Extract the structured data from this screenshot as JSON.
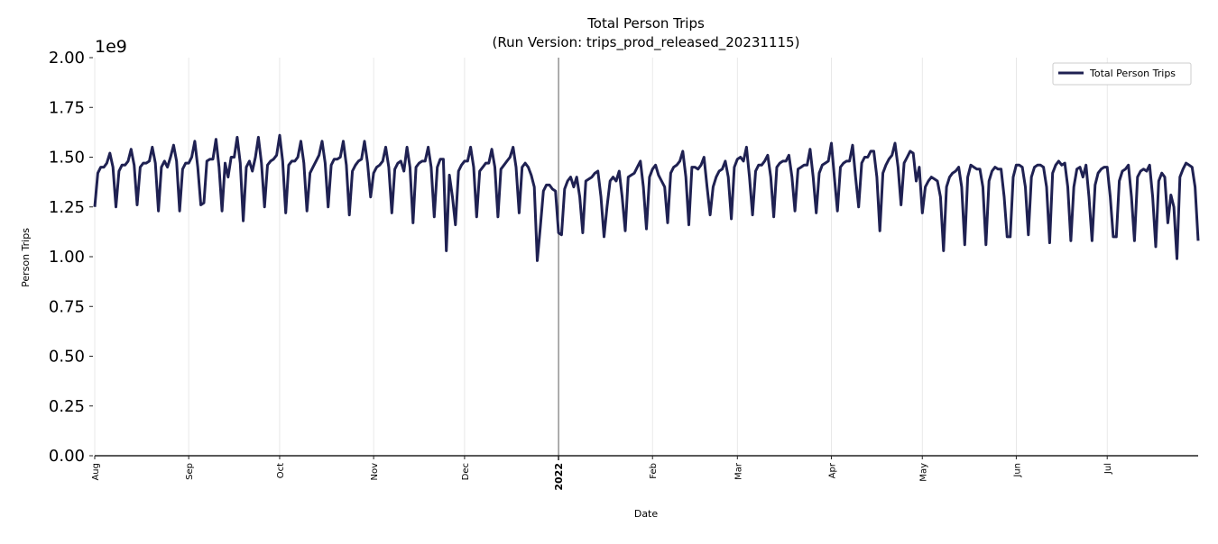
{
  "chart_data": {
    "type": "line",
    "title": "Total Person Trips",
    "subtitle": "(Run Version: trips_prod_released_20231115)",
    "xlabel": "Date",
    "ylabel": "Person Trips",
    "y_offset_label": "1e9",
    "ylim": [
      0,
      2.0
    ],
    "y_ticks": [
      "0.00",
      "0.25",
      "0.50",
      "0.75",
      "1.00",
      "1.25",
      "1.50",
      "1.75",
      "2.00"
    ],
    "x_range": [
      "2021-08-01",
      "2022-07-31"
    ],
    "x_frequency": "daily",
    "x_ticks": [
      {
        "date": "2021-08-01",
        "label": "Aug",
        "bold": false
      },
      {
        "date": "2021-09-01",
        "label": "Sep",
        "bold": false
      },
      {
        "date": "2021-10-01",
        "label": "Oct",
        "bold": false
      },
      {
        "date": "2021-11-01",
        "label": "Nov",
        "bold": false
      },
      {
        "date": "2021-12-01",
        "label": "Dec",
        "bold": false
      },
      {
        "date": "2022-01-01",
        "label": "2022",
        "bold": true
      },
      {
        "date": "2022-02-01",
        "label": "Feb",
        "bold": false
      },
      {
        "date": "2022-03-01",
        "label": "Mar",
        "bold": false
      },
      {
        "date": "2022-04-01",
        "label": "Apr",
        "bold": false
      },
      {
        "date": "2022-05-01",
        "label": "May",
        "bold": false
      },
      {
        "date": "2022-06-01",
        "label": "Jun",
        "bold": false
      },
      {
        "date": "2022-07-01",
        "label": "Jul",
        "bold": false
      }
    ],
    "grid": "vertical at month starts",
    "year_marker": "2022-01-01",
    "legend_position": "top-right",
    "series": [
      {
        "name": "Total Person Trips",
        "color": "#1f2152",
        "values": [
          1.25,
          1.42,
          1.45,
          1.45,
          1.47,
          1.52,
          1.45,
          1.25,
          1.43,
          1.46,
          1.46,
          1.48,
          1.54,
          1.46,
          1.26,
          1.45,
          1.47,
          1.47,
          1.48,
          1.55,
          1.47,
          1.23,
          1.45,
          1.48,
          1.45,
          1.5,
          1.56,
          1.48,
          1.23,
          1.44,
          1.47,
          1.47,
          1.5,
          1.58,
          1.45,
          1.26,
          1.27,
          1.48,
          1.49,
          1.49,
          1.59,
          1.45,
          1.23,
          1.47,
          1.4,
          1.5,
          1.5,
          1.6,
          1.47,
          1.18,
          1.45,
          1.48,
          1.43,
          1.5,
          1.6,
          1.47,
          1.25,
          1.46,
          1.48,
          1.49,
          1.51,
          1.61,
          1.48,
          1.22,
          1.46,
          1.48,
          1.48,
          1.5,
          1.58,
          1.47,
          1.23,
          1.42,
          1.45,
          1.48,
          1.51,
          1.58,
          1.47,
          1.25,
          1.46,
          1.49,
          1.49,
          1.5,
          1.58,
          1.46,
          1.21,
          1.43,
          1.46,
          1.48,
          1.49,
          1.58,
          1.47,
          1.3,
          1.42,
          1.45,
          1.46,
          1.48,
          1.55,
          1.45,
          1.22,
          1.44,
          1.47,
          1.48,
          1.43,
          1.55,
          1.45,
          1.17,
          1.45,
          1.47,
          1.48,
          1.48,
          1.55,
          1.45,
          1.2,
          1.45,
          1.49,
          1.49,
          1.03,
          1.41,
          1.3,
          1.16,
          1.43,
          1.46,
          1.48,
          1.48,
          1.55,
          1.45,
          1.2,
          1.43,
          1.45,
          1.47,
          1.47,
          1.54,
          1.45,
          1.2,
          1.44,
          1.46,
          1.48,
          1.5,
          1.55,
          1.45,
          1.22,
          1.45,
          1.47,
          1.45,
          1.41,
          1.35,
          0.98,
          1.15,
          1.33,
          1.36,
          1.36,
          1.34,
          1.33,
          1.12,
          1.11,
          1.34,
          1.38,
          1.4,
          1.35,
          1.4,
          1.3,
          1.12,
          1.38,
          1.39,
          1.4,
          1.42,
          1.43,
          1.3,
          1.1,
          1.25,
          1.38,
          1.4,
          1.38,
          1.43,
          1.3,
          1.13,
          1.4,
          1.41,
          1.42,
          1.45,
          1.48,
          1.35,
          1.14,
          1.4,
          1.44,
          1.46,
          1.41,
          1.38,
          1.35,
          1.17,
          1.42,
          1.45,
          1.46,
          1.48,
          1.53,
          1.4,
          1.16,
          1.45,
          1.45,
          1.44,
          1.46,
          1.5,
          1.35,
          1.21,
          1.35,
          1.4,
          1.43,
          1.44,
          1.48,
          1.4,
          1.19,
          1.45,
          1.49,
          1.5,
          1.48,
          1.55,
          1.4,
          1.21,
          1.43,
          1.46,
          1.46,
          1.48,
          1.51,
          1.4,
          1.2,
          1.45,
          1.47,
          1.48,
          1.48,
          1.51,
          1.4,
          1.23,
          1.44,
          1.45,
          1.46,
          1.46,
          1.54,
          1.4,
          1.22,
          1.42,
          1.46,
          1.47,
          1.48,
          1.57,
          1.4,
          1.23,
          1.45,
          1.47,
          1.48,
          1.48,
          1.56,
          1.4,
          1.25,
          1.47,
          1.5,
          1.5,
          1.53,
          1.53,
          1.4,
          1.13,
          1.42,
          1.46,
          1.49,
          1.51,
          1.57,
          1.45,
          1.26,
          1.47,
          1.5,
          1.53,
          1.52,
          1.38,
          1.45,
          1.22,
          1.35,
          1.38,
          1.4,
          1.39,
          1.38,
          1.3,
          1.03,
          1.35,
          1.4,
          1.42,
          1.43,
          1.45,
          1.35,
          1.06,
          1.4,
          1.46,
          1.45,
          1.44,
          1.44,
          1.35,
          1.06,
          1.38,
          1.43,
          1.45,
          1.44,
          1.44,
          1.3,
          1.1,
          1.1,
          1.4,
          1.46,
          1.46,
          1.45,
          1.35,
          1.11,
          1.4,
          1.45,
          1.46,
          1.46,
          1.45,
          1.35,
          1.07,
          1.42,
          1.46,
          1.48,
          1.46,
          1.47,
          1.35,
          1.08,
          1.35,
          1.44,
          1.45,
          1.4,
          1.46,
          1.3,
          1.08,
          1.36,
          1.42,
          1.44,
          1.45,
          1.45,
          1.3,
          1.1,
          1.1,
          1.38,
          1.43,
          1.44,
          1.46,
          1.3,
          1.08,
          1.4,
          1.43,
          1.44,
          1.43,
          1.46,
          1.3,
          1.05,
          1.38,
          1.42,
          1.4,
          1.17,
          1.31,
          1.25,
          0.99,
          1.4,
          1.44,
          1.47,
          1.46,
          1.45,
          1.35,
          1.08
        ]
      }
    ]
  }
}
